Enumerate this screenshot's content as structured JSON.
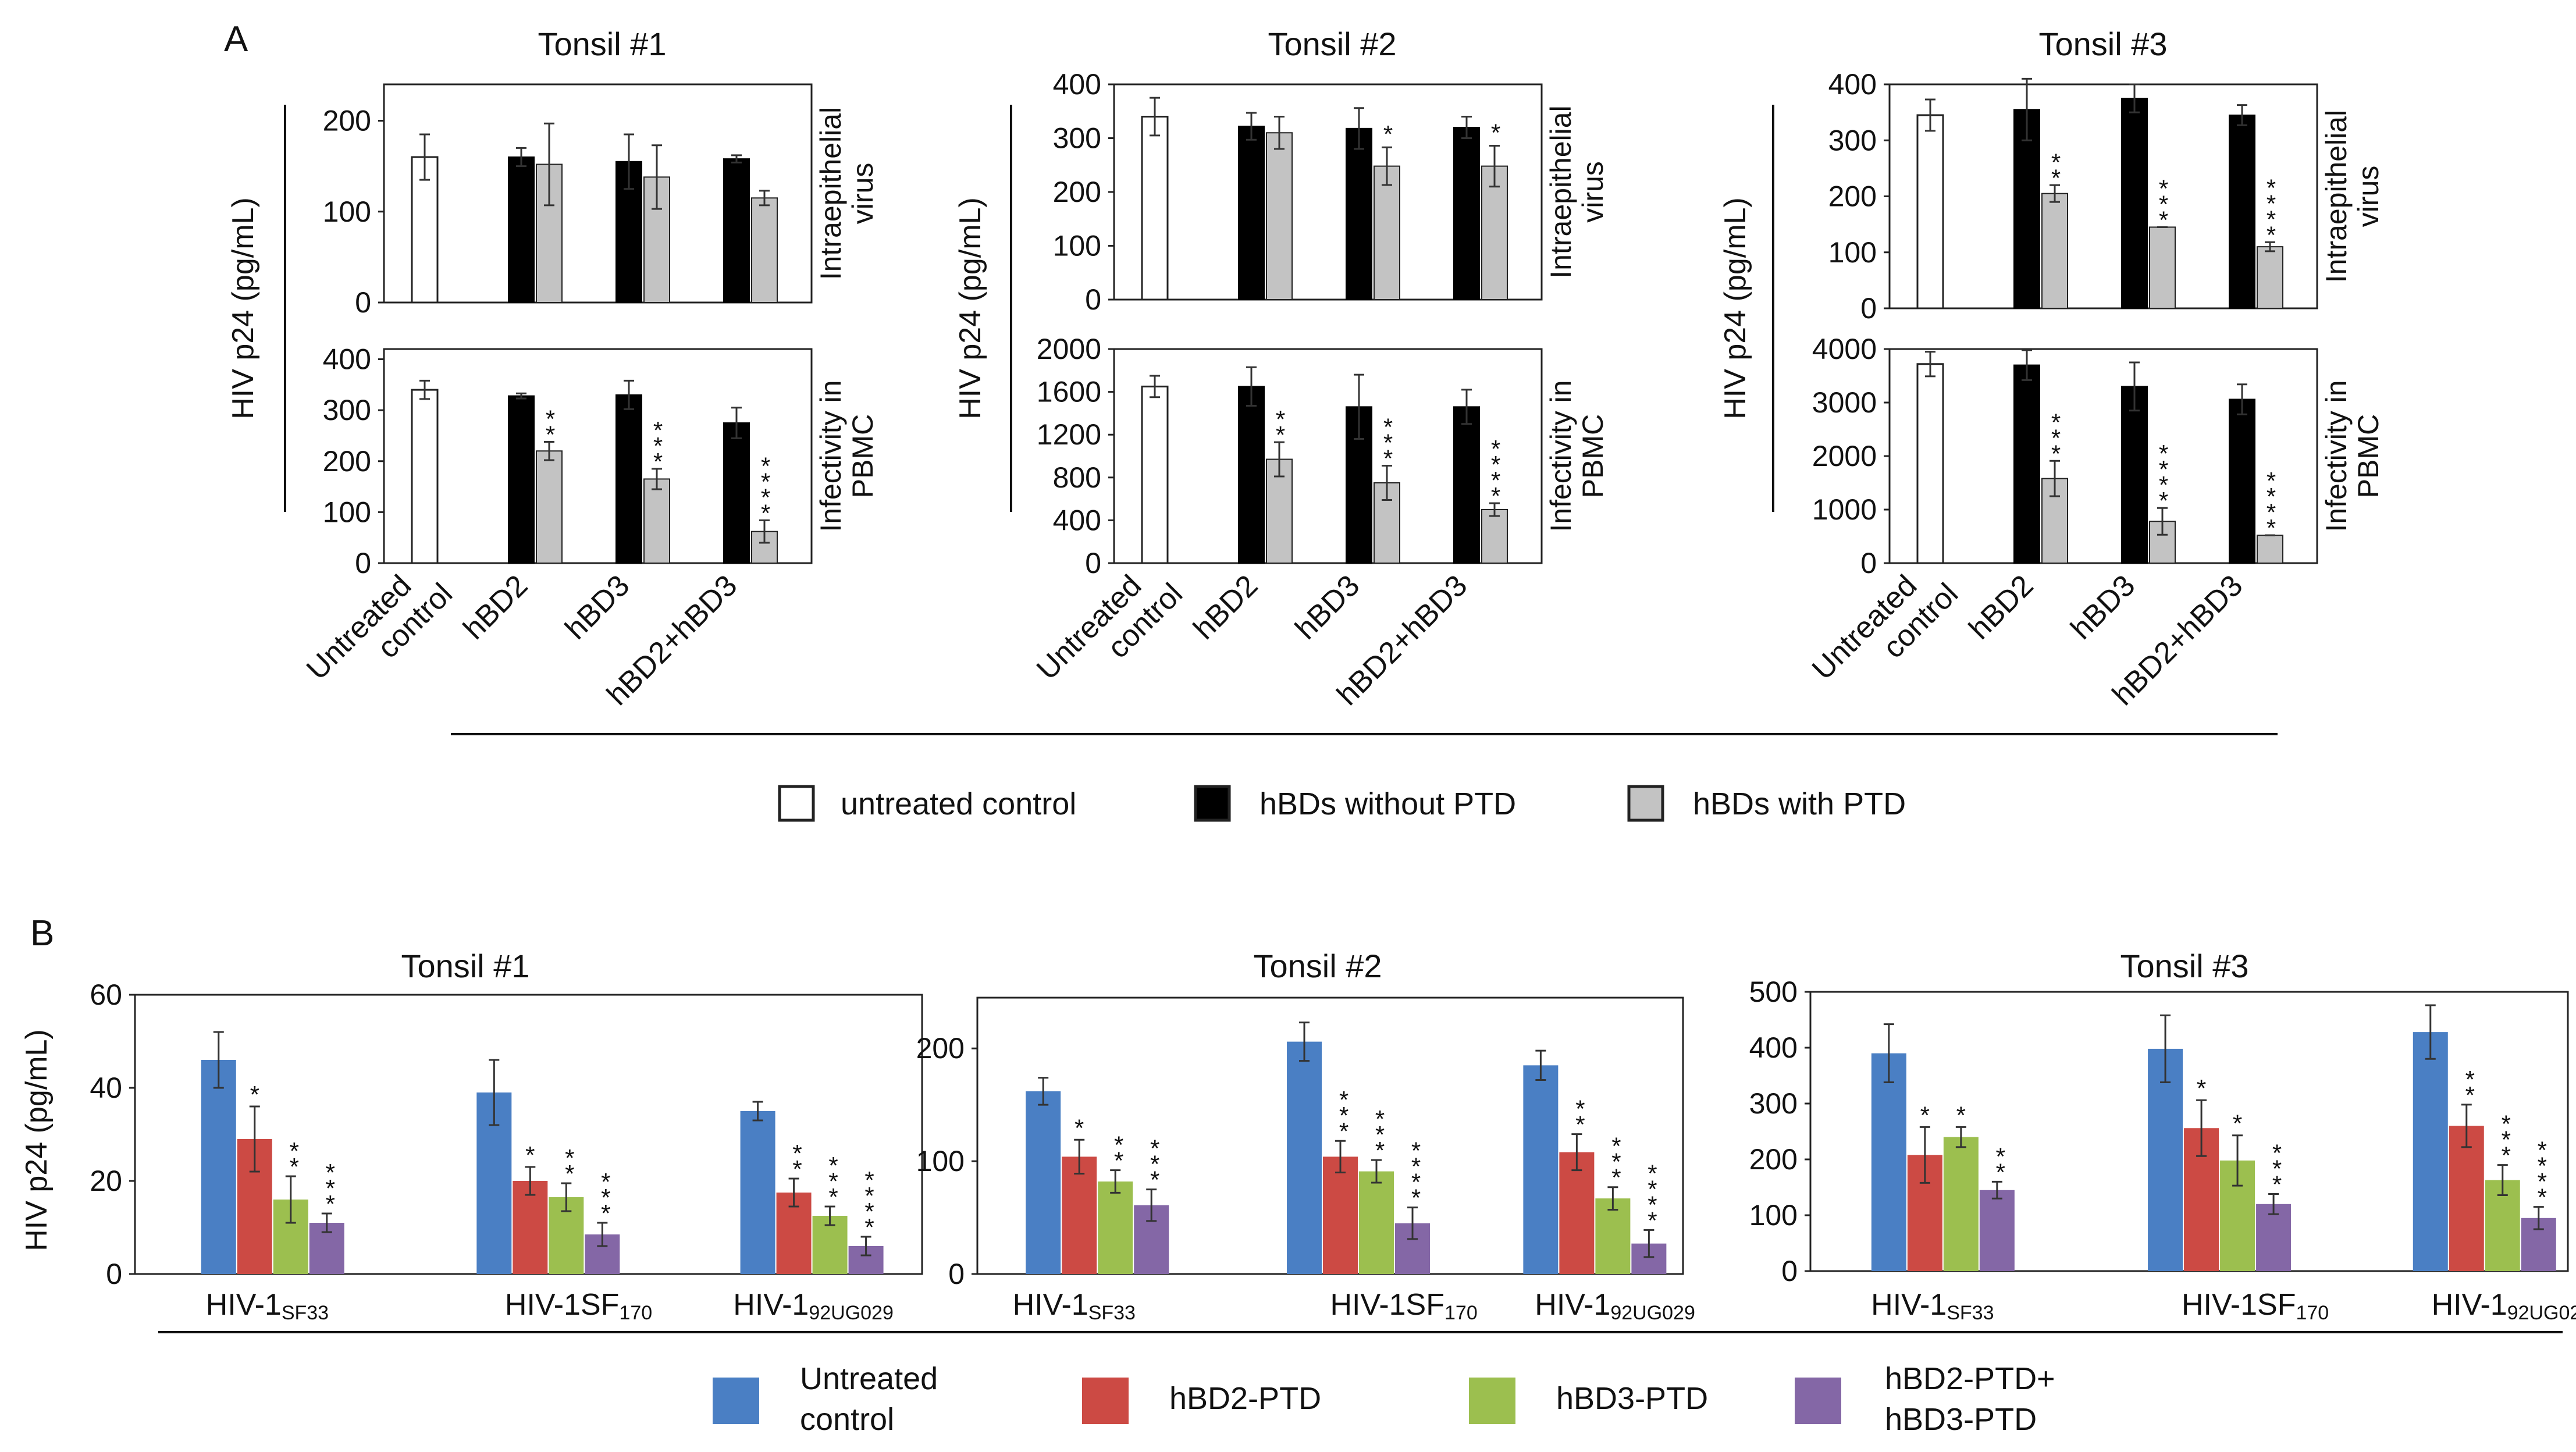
{
  "chart_data": {
    "panel_a": {
      "letter": "A",
      "type": "bar",
      "ylabel": "HIV p24 (pg/mL)",
      "rows": [
        {
          "key": "intra",
          "label": [
            "Intraepithelial",
            "virus"
          ]
        },
        {
          "key": "pbmc",
          "label": [
            "Infectivity in",
            "PBMC"
          ]
        }
      ],
      "categories": [
        [
          "Untreated",
          "control"
        ],
        [
          "hBD2"
        ],
        [
          "hBD3"
        ],
        [
          "hBD2+hBD3"
        ]
      ],
      "tonsils": [
        {
          "title": "Tonsil #1",
          "intra": {
            "ylim": [
              0,
              240
            ],
            "ticks": [
              0,
              100,
              200
            ],
            "control": {
              "value": 160,
              "err": 25
            },
            "bars": [
              {
                "without": 160,
                "without_err": 10,
                "with": 152,
                "with_err": 45,
                "sig": ""
              },
              {
                "without": 155,
                "without_err": 30,
                "with": 138,
                "with_err": 35,
                "sig": ""
              },
              {
                "without": 158,
                "without_err": 4,
                "with": 115,
                "with_err": 8,
                "sig": ""
              }
            ]
          },
          "pbmc": {
            "ylim": [
              0,
              420
            ],
            "ticks": [
              0,
              100,
              200,
              300,
              400
            ],
            "control": {
              "value": 340,
              "err": 18
            },
            "bars": [
              {
                "without": 328,
                "without_err": 5,
                "with": 220,
                "with_err": 18,
                "sig": "**"
              },
              {
                "without": 330,
                "without_err": 28,
                "with": 165,
                "with_err": 20,
                "sig": "***"
              },
              {
                "without": 275,
                "without_err": 30,
                "with": 62,
                "with_err": 22,
                "sig": "****"
              }
            ]
          }
        },
        {
          "title": "Tonsil #2",
          "intra": {
            "ylim": [
              0,
              400
            ],
            "ticks": [
              0,
              100,
              200,
              300,
              400
            ],
            "control": {
              "value": 340,
              "err": 35
            },
            "bars": [
              {
                "without": 322,
                "without_err": 25,
                "with": 310,
                "with_err": 30,
                "sig": ""
              },
              {
                "without": 318,
                "without_err": 38,
                "with": 248,
                "with_err": 35,
                "sig": "*"
              },
              {
                "without": 320,
                "without_err": 20,
                "with": 248,
                "with_err": 38,
                "sig": "*"
              }
            ]
          },
          "pbmc": {
            "ylim": [
              0,
              2000
            ],
            "ticks": [
              0,
              400,
              800,
              1200,
              1600,
              2000
            ],
            "control": {
              "value": 1650,
              "err": 100
            },
            "bars": [
              {
                "without": 1650,
                "without_err": 180,
                "with": 970,
                "with_err": 160,
                "sig": "**"
              },
              {
                "without": 1460,
                "without_err": 300,
                "with": 750,
                "with_err": 160,
                "sig": "***"
              },
              {
                "without": 1460,
                "without_err": 160,
                "with": 500,
                "with_err": 60,
                "sig": "****"
              }
            ]
          }
        },
        {
          "title": "Tonsil #3",
          "intra": {
            "ylim": [
              0,
              400
            ],
            "ticks": [
              0,
              100,
              200,
              300,
              400
            ],
            "control": {
              "value": 345,
              "err": 28
            },
            "bars": [
              {
                "without": 355,
                "without_err": 55,
                "with": 205,
                "with_err": 15,
                "sig": "**"
              },
              {
                "without": 375,
                "without_err": 25,
                "with": 145,
                "with_err": 0,
                "sig": "***"
              },
              {
                "without": 345,
                "without_err": 18,
                "with": 110,
                "with_err": 8,
                "sig": "****"
              }
            ]
          },
          "pbmc": {
            "ylim": [
              0,
              4000
            ],
            "ticks": [
              0,
              1000,
              2000,
              3000,
              4000
            ],
            "control": {
              "value": 3720,
              "err": 230
            },
            "bars": [
              {
                "without": 3700,
                "without_err": 280,
                "with": 1580,
                "with_err": 330,
                "sig": "***"
              },
              {
                "without": 3300,
                "without_err": 450,
                "with": 780,
                "with_err": 250,
                "sig": "****"
              },
              {
                "without": 3060,
                "without_err": 280,
                "with": 520,
                "with_err": 0,
                "sig": "****"
              }
            ]
          }
        }
      ],
      "legend": [
        {
          "label": "untreated control",
          "color": "#ffffff"
        },
        {
          "label": "hBDs without PTD",
          "color": "#000000"
        },
        {
          "label": "hBDs with PTD",
          "color": "#c3c3c3"
        }
      ]
    },
    "panel_b": {
      "letter": "B",
      "type": "bar",
      "ylabel": "HIV p24 (pg/mL)",
      "groups": [
        {
          "main": "HIV-1",
          "sub": "SF33"
        },
        {
          "main": "HIV-1SF",
          "sub": "170"
        },
        {
          "main": "HIV-1",
          "sub": "92UG029"
        }
      ],
      "series": [
        {
          "name": "Untreated control",
          "label_lines": [
            "Untreated",
            "control"
          ],
          "color": "#4a7fc4"
        },
        {
          "name": "hBD2-PTD",
          "label_lines": [
            "hBD2-PTD"
          ],
          "color": "#cc4a44"
        },
        {
          "name": "hBD3-PTD",
          "label_lines": [
            "hBD3-PTD"
          ],
          "color": "#9cbf4f"
        },
        {
          "name": "hBD2-PTD+hBD3-PTD",
          "label_lines": [
            "hBD2-PTD+",
            "hBD3-PTD"
          ],
          "color": "#8467a6"
        }
      ],
      "tonsils": [
        {
          "title": "Tonsil #1",
          "ylim": [
            0,
            60
          ],
          "ticks": [
            0,
            20,
            40,
            60
          ],
          "groups": [
            {
              "values": [
                46,
                29,
                16,
                11
              ],
              "errs": [
                6,
                7,
                5,
                2
              ],
              "sig": [
                "",
                "*",
                "**",
                "***"
              ]
            },
            {
              "values": [
                39,
                20,
                16.5,
                8.5
              ],
              "errs": [
                7,
                3,
                3,
                2.5
              ],
              "sig": [
                "",
                "*",
                "**",
                "***"
              ]
            },
            {
              "values": [
                35,
                17.5,
                12.5,
                6
              ],
              "errs": [
                2,
                3,
                2,
                2
              ],
              "sig": [
                "",
                "**",
                "***",
                "****"
              ]
            }
          ]
        },
        {
          "title": "Tonsil #2",
          "ylim": [
            0,
            245
          ],
          "ticks": [
            0,
            100,
            200
          ],
          "groups": [
            {
              "values": [
                162,
                104,
                82,
                61
              ],
              "errs": [
                12,
                15,
                10,
                14
              ],
              "sig": [
                "",
                "*",
                "**",
                "***"
              ]
            },
            {
              "values": [
                206,
                104,
                91,
                45
              ],
              "errs": [
                17,
                14,
                10,
                14
              ],
              "sig": [
                "",
                "***",
                "***",
                "****"
              ]
            },
            {
              "values": [
                185,
                108,
                67,
                27
              ],
              "errs": [
                13,
                16,
                10,
                12
              ],
              "sig": [
                "",
                "**",
                "***",
                "****"
              ]
            }
          ]
        },
        {
          "title": "Tonsil #3",
          "ylim": [
            0,
            500
          ],
          "ticks": [
            0,
            100,
            200,
            300,
            400,
            500
          ],
          "groups": [
            {
              "values": [
                390,
                208,
                240,
                145
              ],
              "errs": [
                52,
                50,
                18,
                15
              ],
              "sig": [
                "",
                "*",
                "*",
                "**"
              ]
            },
            {
              "values": [
                398,
                256,
                198,
                120
              ],
              "errs": [
                60,
                50,
                45,
                18
              ],
              "sig": [
                "",
                "*",
                "*",
                "***"
              ]
            },
            {
              "values": [
                428,
                260,
                163,
                95
              ],
              "errs": [
                48,
                38,
                27,
                20
              ],
              "sig": [
                "",
                "**",
                "***",
                "****"
              ]
            }
          ]
        }
      ]
    }
  }
}
